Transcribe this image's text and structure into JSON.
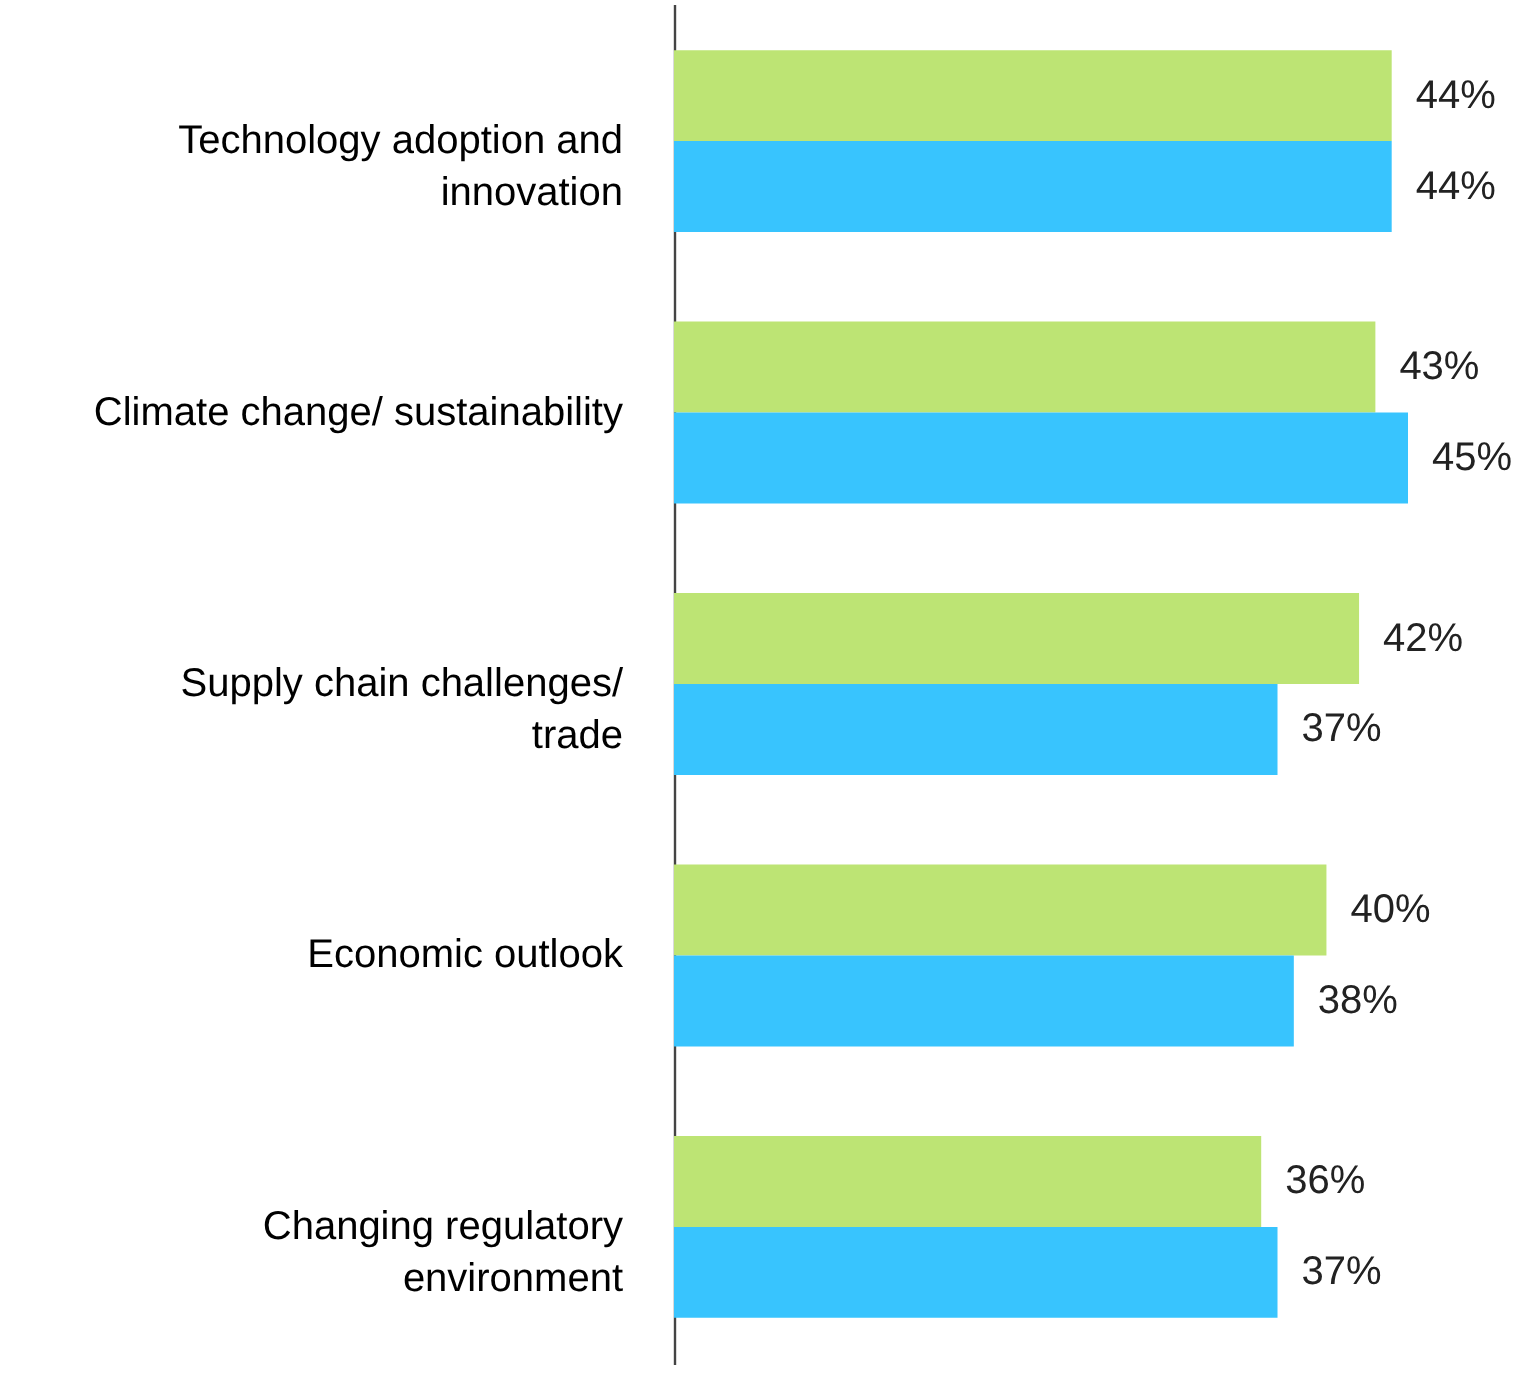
{
  "chart_data": {
    "type": "bar",
    "orientation": "horizontal",
    "categories": [
      "Technology adoption and innovation",
      "Climate change/ sustainability",
      "Supply chain challenges/ trade",
      "Economic outlook",
      "Changing regulatory environment"
    ],
    "series": [
      {
        "color": "#bde474",
        "values": [
          44,
          43,
          42,
          40,
          36
        ],
        "value_labels": [
          "44%",
          "43%",
          "42%",
          "40%",
          "36%"
        ]
      },
      {
        "color": "#38c4fe",
        "values": [
          44,
          45,
          37,
          38,
          37
        ],
        "value_labels": [
          "44%",
          "45%",
          "37%",
          "38%",
          "37%"
        ]
      }
    ]
  }
}
